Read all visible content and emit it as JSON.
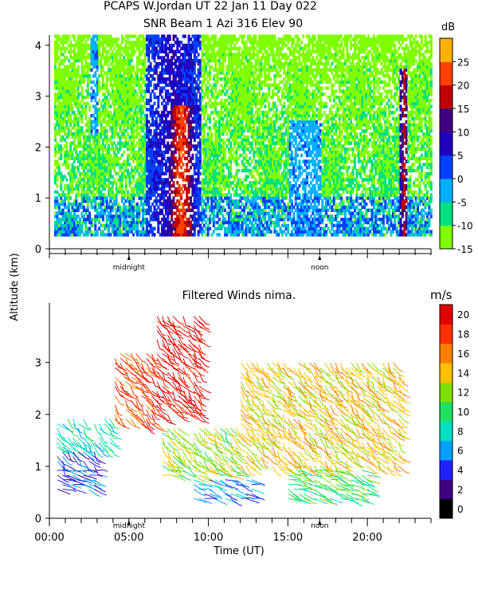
{
  "header": {
    "title_line1": "PCAPS W.Jordan UT  22 Jan 11 Day 022",
    "title_line2": "SNR Beam 1 Azi 316 Elev 90"
  },
  "shared_axes": {
    "ylabel": "Altitude (km)",
    "xlabel": "Time (UT)",
    "x_tick_labels": [
      "00:00",
      "05:00",
      "10:00",
      "15:00",
      "20:00"
    ],
    "markers": [
      "midnight",
      "noon"
    ]
  },
  "chart_data": [
    {
      "type": "heatmap",
      "title": "SNR Beam 1 Azi 316 Elev 90",
      "xlabel": "Time (UT)",
      "ylabel": "Altitude (km)",
      "xlim": [
        0,
        24
      ],
      "ylim": [
        0,
        4.2
      ],
      "y_ticks": [
        0,
        1,
        2,
        3,
        4
      ],
      "colorbar": {
        "unit": "dB",
        "range": [
          -15,
          29
        ],
        "ticks": [
          -15,
          -10,
          -5,
          0,
          5,
          10,
          15,
          20,
          25
        ],
        "colors": [
          "#80ff00",
          "#00e080",
          "#00b0ff",
          "#0040ff",
          "#2000c0",
          "#400080",
          "#c00000",
          "#ff4000",
          "#ffb000"
        ]
      },
      "features": [
        {
          "time_h": [
            2.5,
            3.0
          ],
          "alt_km": [
            2.2,
            4.2
          ],
          "level_db": 0
        },
        {
          "time_h": [
            6.0,
            9.5
          ],
          "alt_km": [
            0.2,
            4.2
          ],
          "level_db": 10
        },
        {
          "time_h": [
            7.5,
            9.0
          ],
          "alt_km": [
            0.2,
            2.8
          ],
          "level_db": 25
        },
        {
          "time_h": [
            15.0,
            17.0
          ],
          "alt_km": [
            0.2,
            2.5
          ],
          "level_db": 0
        },
        {
          "time_h": [
            22.0,
            22.5
          ],
          "alt_km": [
            0.2,
            3.5
          ],
          "level_db": 20
        }
      ]
    },
    {
      "type": "scatter",
      "title": "Filtered Winds nima.",
      "xlabel": "Time (UT)",
      "ylabel": "Altitude (km)",
      "xlim": [
        0,
        24
      ],
      "ylim": [
        0,
        4
      ],
      "y_ticks": [
        0,
        1,
        2,
        3
      ],
      "colorbar": {
        "unit": "m/s",
        "ticks": [
          0,
          2,
          4,
          6,
          8,
          10,
          12,
          14,
          16,
          18,
          20
        ],
        "colors": [
          "#000000",
          "#400080",
          "#2020ff",
          "#00a0ff",
          "#00e0c0",
          "#20e060",
          "#80e000",
          "#ffc000",
          "#ff8000",
          "#ff3000",
          "#e00000"
        ]
      },
      "wind_speed_regions_ms": [
        {
          "time_h": [
            0.0,
            3.0
          ],
          "alt_km": [
            0.5,
            1.3
          ],
          "speed": 4
        },
        {
          "time_h": [
            0.5,
            4.0
          ],
          "alt_km": [
            1.3,
            2.0
          ],
          "speed": 8
        },
        {
          "time_h": [
            4.0,
            7.0
          ],
          "alt_km": [
            1.8,
            3.2
          ],
          "speed": 18
        },
        {
          "time_h": [
            6.5,
            9.5
          ],
          "alt_km": [
            2.0,
            3.9
          ],
          "speed": 20
        },
        {
          "time_h": [
            7.0,
            12.0
          ],
          "alt_km": [
            0.8,
            1.8
          ],
          "speed": 12
        },
        {
          "time_h": [
            9.0,
            13.0
          ],
          "alt_km": [
            0.3,
            0.8
          ],
          "speed": 6
        },
        {
          "time_h": [
            12.0,
            22.0
          ],
          "alt_km": [
            1.0,
            3.0
          ],
          "speed": 14
        },
        {
          "time_h": [
            15.0,
            20.0
          ],
          "alt_km": [
            0.3,
            1.0
          ],
          "speed": 10
        }
      ]
    }
  ]
}
